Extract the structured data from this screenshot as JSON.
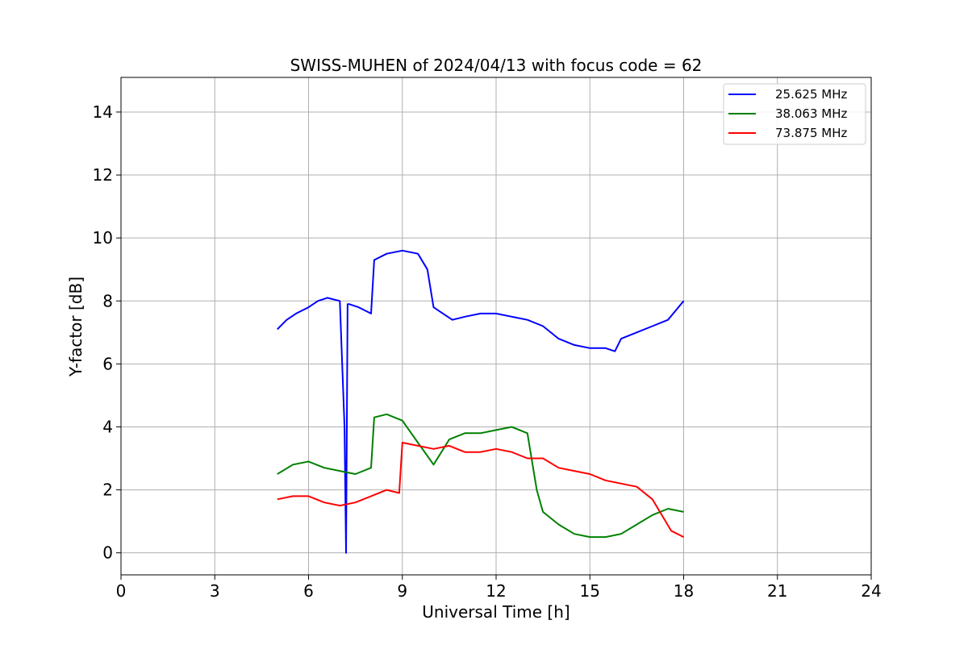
{
  "chart_data": {
    "type": "line",
    "title": "SWISS-MUHEN of 2024/04/13 with focus code = 62",
    "xlabel": "Universal Time [h]",
    "ylabel": "Y-factor [dB]",
    "xlim": [
      0,
      24
    ],
    "ylim": [
      -0.7,
      15.1
    ],
    "xticks": [
      0,
      3,
      6,
      9,
      12,
      15,
      18,
      21,
      24
    ],
    "yticks": [
      0,
      2,
      4,
      6,
      8,
      10,
      12,
      14
    ],
    "grid": true,
    "legend_position": "top-right",
    "series": [
      {
        "name": "25.625 MHz",
        "color": "#0000ff",
        "x": [
          5.0,
          5.3,
          5.6,
          6.0,
          6.3,
          6.6,
          7.0,
          7.15,
          7.2,
          7.25,
          7.3,
          7.6,
          8.0,
          8.1,
          8.5,
          9.0,
          9.5,
          9.8,
          10.0,
          10.3,
          10.6,
          11.0,
          11.5,
          12.0,
          12.5,
          13.0,
          13.5,
          14.0,
          14.5,
          15.0,
          15.5,
          15.8,
          16.0,
          16.5,
          17.0,
          17.5,
          18.0
        ],
        "y": [
          7.1,
          7.4,
          7.6,
          7.8,
          8.0,
          8.1,
          8.0,
          4.0,
          0.0,
          7.9,
          7.9,
          7.8,
          7.6,
          9.3,
          9.5,
          9.6,
          9.5,
          9.0,
          7.8,
          7.6,
          7.4,
          7.5,
          7.6,
          7.6,
          7.5,
          7.4,
          7.2,
          6.8,
          6.6,
          6.5,
          6.5,
          6.4,
          6.8,
          7.0,
          7.2,
          7.4,
          8.0
        ]
      },
      {
        "name": "38.063 MHz",
        "color": "#008000",
        "x": [
          5.0,
          5.5,
          6.0,
          6.5,
          7.0,
          7.5,
          8.0,
          8.1,
          8.5,
          9.0,
          9.5,
          10.0,
          10.5,
          11.0,
          11.5,
          12.0,
          12.5,
          13.0,
          13.3,
          13.5,
          14.0,
          14.5,
          15.0,
          15.5,
          16.0,
          16.5,
          17.0,
          17.5,
          18.0
        ],
        "y": [
          2.5,
          2.8,
          2.9,
          2.7,
          2.6,
          2.5,
          2.7,
          4.3,
          4.4,
          4.2,
          3.5,
          2.8,
          3.6,
          3.8,
          3.8,
          3.9,
          4.0,
          3.8,
          2.0,
          1.3,
          0.9,
          0.6,
          0.5,
          0.5,
          0.6,
          0.9,
          1.2,
          1.4,
          1.3
        ]
      },
      {
        "name": "73.875 MHz",
        "color": "#ff0000",
        "x": [
          5.0,
          5.5,
          6.0,
          6.5,
          7.0,
          7.5,
          8.0,
          8.5,
          8.9,
          9.0,
          9.5,
          10.0,
          10.5,
          11.0,
          11.5,
          12.0,
          12.5,
          13.0,
          13.5,
          14.0,
          14.5,
          15.0,
          15.5,
          16.0,
          16.5,
          17.0,
          17.3,
          17.6,
          18.0
        ],
        "y": [
          1.7,
          1.8,
          1.8,
          1.6,
          1.5,
          1.6,
          1.8,
          2.0,
          1.9,
          3.5,
          3.4,
          3.3,
          3.4,
          3.2,
          3.2,
          3.3,
          3.2,
          3.0,
          3.0,
          2.7,
          2.6,
          2.5,
          2.3,
          2.2,
          2.1,
          1.7,
          1.2,
          0.7,
          0.5
        ]
      }
    ]
  }
}
